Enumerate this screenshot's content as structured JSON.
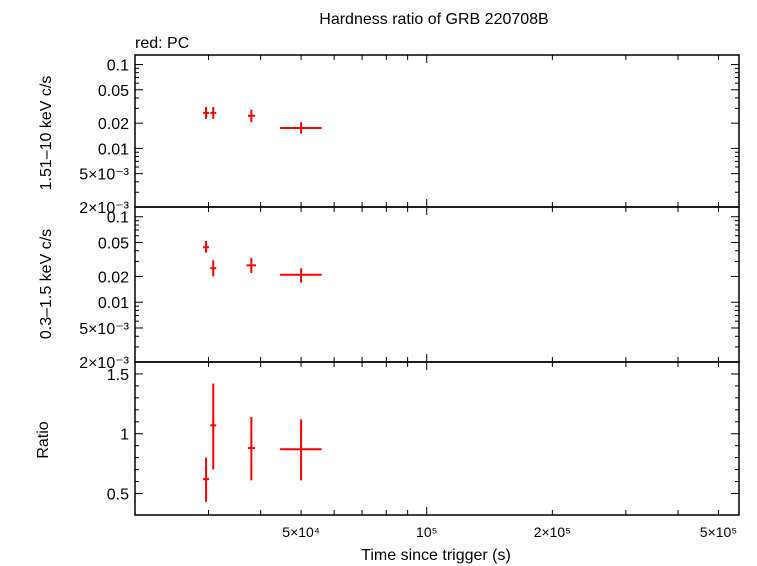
{
  "title": "Hardness ratio of GRB 220708B",
  "subtitle": "red: PC",
  "colors": {
    "series": "#ff0000",
    "axes": "#000000",
    "background": "#ffffff"
  },
  "x_axis": {
    "label": "Time since trigger (s)",
    "scale": "log",
    "range": [
      20000,
      560000
    ],
    "ticks": [
      {
        "value": 50000,
        "label": "5×10⁴"
      },
      {
        "value": 100000,
        "label": "10⁵"
      },
      {
        "value": 200000,
        "label": "2×10⁵"
      },
      {
        "value": 500000,
        "label": "5×10⁵"
      }
    ]
  },
  "chart_data": [
    {
      "type": "scatter",
      "panel": "hard",
      "ylabel": "1.51–10 keV c/s",
      "yscale": "log",
      "ylim": [
        0.002,
        0.13
      ],
      "yticks": [
        {
          "value": 0.1,
          "label": "0.1"
        },
        {
          "value": 0.05,
          "label": "0.05"
        },
        {
          "value": 0.02,
          "label": "0.02"
        },
        {
          "value": 0.01,
          "label": "0.01"
        },
        {
          "value": 0.005,
          "label": "5×10⁻³"
        },
        {
          "value": 0.002,
          "label": "2×10⁻³"
        }
      ],
      "series": [
        {
          "points": [
            {
              "x": 29600,
              "xerr": [
                29300,
                29900
              ],
              "y": 0.0265,
              "yerr": [
                0.0225,
                0.0312
              ]
            },
            {
              "x": 30800,
              "xerr": [
                30500,
                31100
              ],
              "y": 0.0265,
              "yerr": [
                0.0225,
                0.0312
              ]
            },
            {
              "x": 38000,
              "xerr": [
                37300,
                38800
              ],
              "y": 0.0245,
              "yerr": [
                0.0205,
                0.029
              ]
            },
            {
              "x": 50000,
              "xerr": [
                44500,
                56000
              ],
              "y": 0.0175,
              "yerr": [
                0.015,
                0.0205
              ]
            }
          ]
        }
      ]
    },
    {
      "type": "scatter",
      "panel": "soft",
      "ylabel": "0.3–1.5 keV c/s",
      "yscale": "log",
      "ylim": [
        0.002,
        0.13
      ],
      "yticks": [
        {
          "value": 0.1,
          "label": "0.1"
        },
        {
          "value": 0.05,
          "label": "0.05"
        },
        {
          "value": 0.02,
          "label": "0.02"
        },
        {
          "value": 0.01,
          "label": "0.01"
        },
        {
          "value": 0.005,
          "label": "5×10⁻³"
        },
        {
          "value": 0.002,
          "label": "2×10⁻³"
        }
      ],
      "series": [
        {
          "points": [
            {
              "x": 29600,
              "xerr": [
                29200,
                30000
              ],
              "y": 0.044,
              "yerr": [
                0.038,
                0.052
              ]
            },
            {
              "x": 30800,
              "xerr": [
                30400,
                31200
              ],
              "y": 0.025,
              "yerr": [
                0.02,
                0.031
              ]
            },
            {
              "x": 38000,
              "xerr": [
                37000,
                39000
              ],
              "y": 0.027,
              "yerr": [
                0.022,
                0.033
              ]
            },
            {
              "x": 50000,
              "xerr": [
                44500,
                56000
              ],
              "y": 0.021,
              "yerr": [
                0.017,
                0.025
              ]
            }
          ]
        }
      ]
    },
    {
      "type": "scatter",
      "panel": "ratio",
      "ylabel": "Ratio",
      "yscale": "linear",
      "ylim": [
        0.32,
        1.6
      ],
      "yticks": [
        {
          "value": 1.5,
          "label": "1.5"
        },
        {
          "value": 1,
          "label": "1"
        },
        {
          "value": 0.5,
          "label": "0.5"
        }
      ],
      "series": [
        {
          "points": [
            {
              "x": 29600,
              "xerr": [
                29300,
                29900
              ],
              "y": 0.62,
              "yerr": [
                0.43,
                0.8
              ]
            },
            {
              "x": 30800,
              "xerr": [
                30500,
                31100
              ],
              "y": 1.07,
              "yerr": [
                0.7,
                1.42
              ]
            },
            {
              "x": 38000,
              "xerr": [
                37300,
                38800
              ],
              "y": 0.88,
              "yerr": [
                0.61,
                1.14
              ]
            },
            {
              "x": 50000,
              "xerr": [
                44500,
                56000
              ],
              "y": 0.87,
              "yerr": [
                0.61,
                1.12
              ]
            }
          ]
        }
      ]
    }
  ]
}
